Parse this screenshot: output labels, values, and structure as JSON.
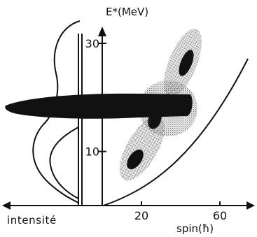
{
  "figure": {
    "y_axis_title": "E*(MeV)",
    "x_axis_title": "spin(ħ)",
    "intensity_axis_label": "intensité",
    "y_ticks": [
      {
        "value": 10,
        "label": "10"
      },
      {
        "value": 30,
        "label": "30"
      }
    ],
    "x_ticks": [
      {
        "value": 20,
        "label": "20"
      },
      {
        "value": 60,
        "label": "60"
      }
    ]
  },
  "colors": {
    "ink": "#111111",
    "shading": "#8c8c8c",
    "background": "#ffffff"
  }
}
